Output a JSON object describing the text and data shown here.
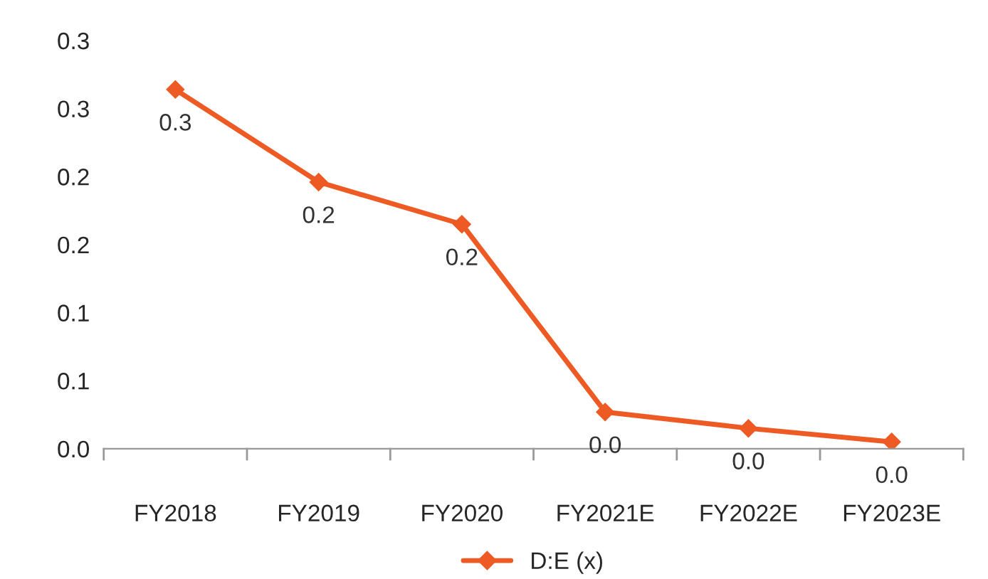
{
  "chart_data": {
    "type": "line",
    "categories": [
      "FY2018",
      "FY2019",
      "FY2020",
      "FY2021E",
      "FY2022E",
      "FY2023E"
    ],
    "series": [
      {
        "name": "D:E (x)",
        "color": "#ee5a24",
        "values": [
          0.264,
          0.196,
          0.165,
          0.027,
          0.015,
          0.005
        ],
        "value_labels": [
          "0.3",
          "0.2",
          "0.2",
          "0.0",
          "0.0",
          "0.0"
        ]
      }
    ],
    "ylim": [
      0,
      0.3
    ],
    "yticks": [
      {
        "value": 0,
        "label": "0.0"
      },
      {
        "value": 0.05,
        "label": "0.1"
      },
      {
        "value": 0.1,
        "label": "0.1"
      },
      {
        "value": 0.15,
        "label": "0.2"
      },
      {
        "value": 0.2,
        "label": "0.2"
      },
      {
        "value": 0.25,
        "label": "0.3"
      },
      {
        "value": 0.3,
        "label": "0.3"
      }
    ],
    "marker": "diamond",
    "line_style": "solid",
    "legend": "bottom",
    "grid": false
  }
}
